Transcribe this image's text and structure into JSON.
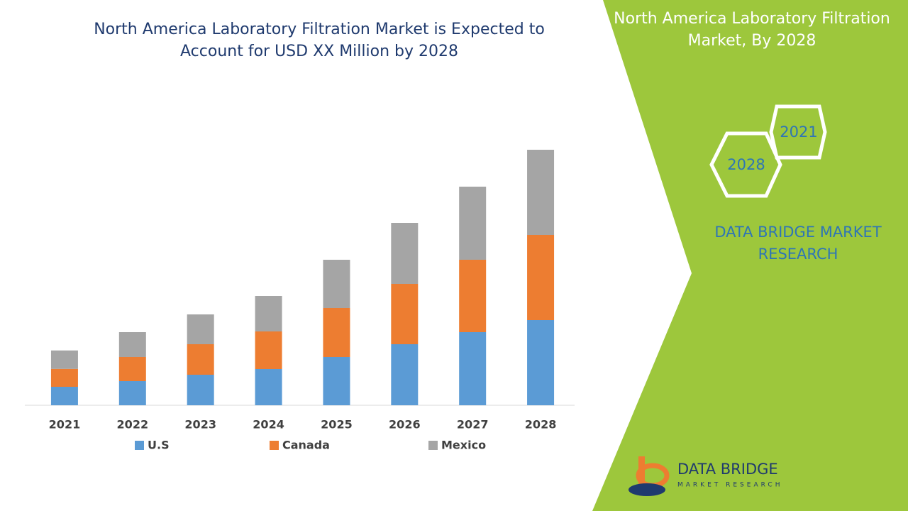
{
  "chart_data": {
    "type": "bar",
    "stacked": true,
    "title": "North America Laboratory Filtration Market is Expected to Account for USD XX Million by 2028",
    "categories": [
      "2021",
      "2022",
      "2023",
      "2024",
      "2025",
      "2026",
      "2027",
      "2028"
    ],
    "series": [
      {
        "name": "U.S",
        "color": "#5b9bd5",
        "values": [
          6.5,
          8.5,
          10.75,
          12.75,
          17,
          21.5,
          25.75,
          30
        ]
      },
      {
        "name": "Canada",
        "color": "#ed7d31",
        "values": [
          6.3,
          8.5,
          10.75,
          13.25,
          17.25,
          21.25,
          25.5,
          30
        ]
      },
      {
        "name": "Mexico",
        "color": "#a5a5a5",
        "values": [
          6.5,
          8.75,
          10.5,
          12.5,
          17,
          21.5,
          25.75,
          30
        ]
      }
    ],
    "ylim": [
      0,
      100
    ],
    "grid": false,
    "legend": "bottom"
  },
  "sidebar": {
    "title": "North America Laboratory Filtration Market, By 2028",
    "hexagons": [
      "2021",
      "2028"
    ],
    "brand": "DATA BRIDGE MARKET RESEARCH"
  },
  "logo": {
    "name": "DATA BRIDGE",
    "tagline": "MARKET RESEARCH"
  }
}
